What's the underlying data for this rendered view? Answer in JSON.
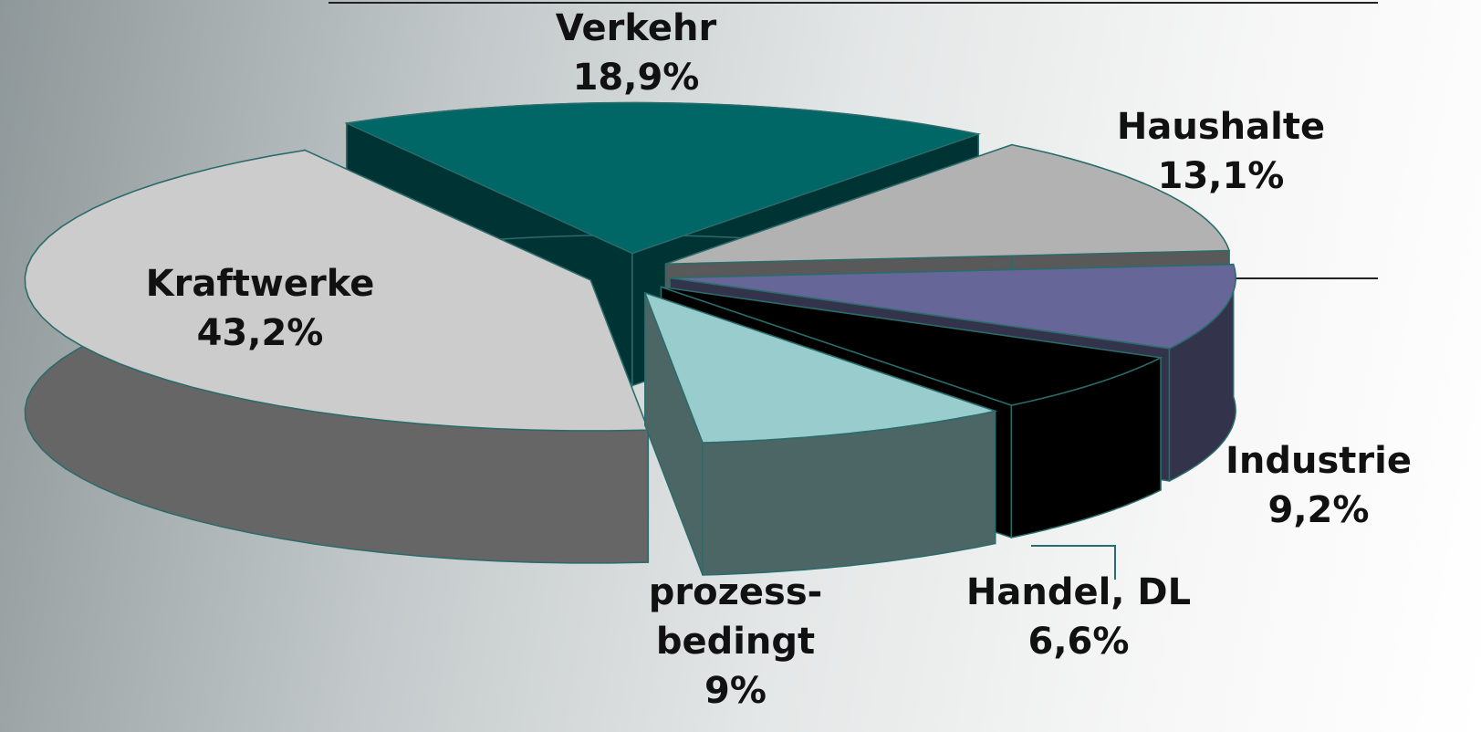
{
  "chart_data": {
    "type": "pie",
    "categories": [
      "Verkehr",
      "Haushalte",
      "Industrie",
      "Handel, DL",
      "prozess-\nbedingt",
      "Kraftwerke"
    ],
    "values": [
      18.9,
      13.1,
      9.2,
      6.6,
      9,
      43.2
    ],
    "value_labels": [
      "18,9%",
      "13,1%",
      "9,2%",
      "6,6%",
      "9%",
      "43,2%"
    ],
    "colors": [
      "#006666",
      "#b2b2b2",
      "#666699",
      "#000000",
      "#99cccc",
      "#cccccc"
    ]
  }
}
